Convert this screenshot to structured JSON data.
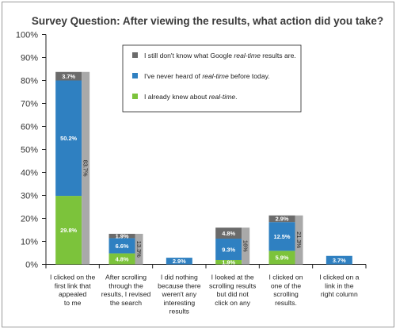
{
  "chart_data": {
    "type": "bar",
    "stacked": true,
    "title": "Survey Question: After viewing the results, what action did you take?",
    "xlabel": "",
    "ylabel": "",
    "ylim": [
      0,
      100
    ],
    "yticks": [
      "0%",
      "10%",
      "20%",
      "30%",
      "40%",
      "50%",
      "60%",
      "70%",
      "80%",
      "90%",
      "100%"
    ],
    "categories": [
      [
        "I clicked on the",
        "first link that",
        "appealed",
        "to me"
      ],
      [
        "After scrolling",
        "through the",
        "results, I revised",
        "the search"
      ],
      [
        "I did nothing",
        "because there",
        "weren't any",
        "interesting",
        "results"
      ],
      [
        "I looked at the",
        "scrolling results",
        "but did not",
        "click on any"
      ],
      [
        "I clicked on",
        "one of the",
        "scrolling",
        "results."
      ],
      [
        "I clicked on a",
        "link in the",
        "right column"
      ]
    ],
    "series": [
      {
        "name_parts": [
          "I already knew about ",
          "real-time",
          "."
        ],
        "color": "#7cc33b",
        "values": [
          29.8,
          4.8,
          null,
          1.9,
          5.9,
          null
        ],
        "labels": [
          "29.8%",
          "4.8%",
          "",
          "1.9%",
          "5.9%",
          ""
        ]
      },
      {
        "name_parts": [
          "I've never heard of ",
          "real-time",
          " before today."
        ],
        "color": "#2f80c1",
        "values": [
          50.2,
          6.6,
          2.9,
          9.3,
          12.5,
          3.7
        ],
        "labels": [
          "50.2%",
          "6.6%",
          "2.9%",
          "9.3%",
          "12.5%",
          "3.7%"
        ]
      },
      {
        "name_parts": [
          "I still don't know what Google ",
          "real-time",
          " results are."
        ],
        "color": "#6b6b6b",
        "values": [
          3.7,
          1.9,
          null,
          4.8,
          2.9,
          null
        ],
        "labels": [
          "3.7%",
          "1.9%",
          "",
          "4.8%",
          "2.9%",
          ""
        ]
      }
    ],
    "totals": {
      "color": "#a9a9a9",
      "values": [
        83.7,
        13.3,
        null,
        16.0,
        21.3,
        null
      ],
      "labels": [
        "83.7%",
        "13.3%",
        "",
        "16%",
        "21.3%",
        ""
      ]
    },
    "grid": false,
    "legend_position": "top-right"
  }
}
